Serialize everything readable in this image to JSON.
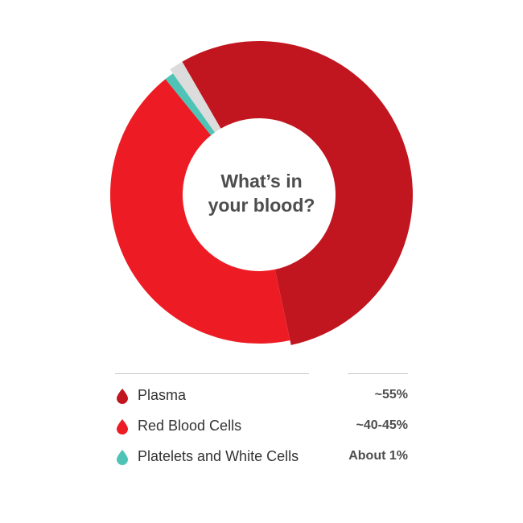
{
  "chart_data": {
    "type": "pie",
    "title": "What’s in your blood?",
    "title_lines": [
      "What’s in",
      "your blood?"
    ],
    "slices": [
      {
        "name": "Plasma",
        "value_label": "~55%",
        "value": 55,
        "color": "#c1161f"
      },
      {
        "name": "Red Blood Cells",
        "value_label": "~40-45%",
        "value": 42.5,
        "color": "#ed1c24"
      },
      {
        "name": "Platelets and White Cells",
        "value_label": "About 1%",
        "value": 1,
        "color": "#4ec3b6"
      }
    ],
    "remainder_color": "#dcdcdc",
    "donut": true
  }
}
